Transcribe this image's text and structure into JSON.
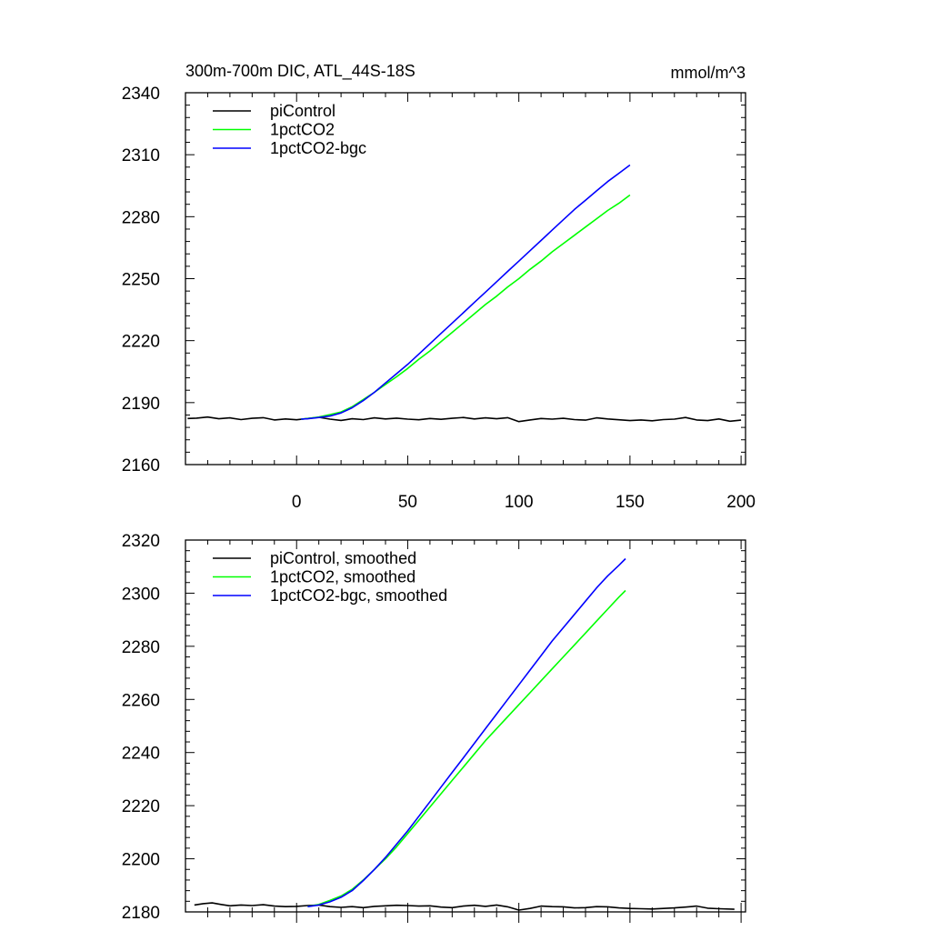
{
  "header": {
    "title": "300m-700m DIC, ATL_44S-18S",
    "units": "mmol/m^3"
  },
  "colors": {
    "piControl": "#000000",
    "1pctCO2": "#00ff00",
    "1pctCO2-bgc": "#0000ff"
  },
  "chart_data": [
    {
      "type": "line",
      "title": "300m-700m DIC, ATL_44S-18S",
      "units_label": "mmol/m^3",
      "xlabel": "",
      "ylabel": "",
      "xlim": [
        -50,
        202
      ],
      "ylim": [
        2160,
        2340
      ],
      "xticks": [
        0,
        50,
        100,
        150,
        200
      ],
      "yticks": [
        2160,
        2190,
        2220,
        2250,
        2280,
        2310,
        2340
      ],
      "grid": false,
      "legend_position": "top-left",
      "series": [
        {
          "name": "piControl",
          "color": "#000000",
          "x": [
            -49,
            -45,
            -40,
            -35,
            -30,
            -25,
            -20,
            -15,
            -10,
            -5,
            0,
            5,
            10,
            15,
            20,
            25,
            30,
            35,
            40,
            45,
            50,
            55,
            60,
            65,
            70,
            75,
            80,
            85,
            90,
            95,
            100,
            105,
            110,
            115,
            120,
            125,
            130,
            135,
            140,
            145,
            150,
            155,
            160,
            165,
            170,
            175,
            180,
            185,
            190,
            195,
            200
          ],
          "y": [
            2182.3,
            2182.5,
            2183.0,
            2182.2,
            2182.6,
            2181.8,
            2182.4,
            2182.7,
            2181.6,
            2182.1,
            2181.7,
            2182.3,
            2182.9,
            2182.0,
            2181.4,
            2182.2,
            2181.8,
            2182.6,
            2182.1,
            2182.5,
            2182.0,
            2181.7,
            2182.3,
            2181.9,
            2182.4,
            2182.8,
            2182.1,
            2182.6,
            2182.2,
            2182.7,
            2180.8,
            2181.6,
            2182.3,
            2182.0,
            2182.4,
            2181.8,
            2181.5,
            2182.6,
            2182.1,
            2181.7,
            2181.3,
            2181.6,
            2181.2,
            2181.8,
            2182.0,
            2182.8,
            2181.6,
            2181.3,
            2182.1,
            2181.0,
            2181.5
          ]
        },
        {
          "name": "1pctCO2",
          "color": "#00ff00",
          "x": [
            2,
            5,
            10,
            15,
            20,
            25,
            30,
            35,
            40,
            45,
            50,
            55,
            60,
            65,
            70,
            75,
            80,
            85,
            90,
            95,
            100,
            105,
            110,
            115,
            120,
            125,
            130,
            135,
            140,
            145,
            150
          ],
          "y": [
            2182.0,
            2182.3,
            2183.0,
            2184.2,
            2185.5,
            2188.0,
            2191.5,
            2195.0,
            2198.8,
            2202.5,
            2206.5,
            2211.0,
            2215.0,
            2219.5,
            2224.0,
            2228.5,
            2233.0,
            2237.5,
            2241.5,
            2246.0,
            2250.0,
            2254.5,
            2258.5,
            2263.0,
            2267.0,
            2271.0,
            2275.0,
            2279.0,
            2283.0,
            2286.5,
            2290.5
          ]
        },
        {
          "name": "1pctCO2-bgc",
          "color": "#0000ff",
          "x": [
            2,
            5,
            10,
            15,
            20,
            25,
            30,
            35,
            40,
            45,
            50,
            55,
            60,
            65,
            70,
            75,
            80,
            85,
            90,
            95,
            100,
            105,
            110,
            115,
            120,
            125,
            130,
            135,
            140,
            145,
            150
          ],
          "y": [
            2182.0,
            2182.2,
            2182.8,
            2183.5,
            2185.0,
            2187.5,
            2191.0,
            2195.0,
            2199.5,
            2204.0,
            2208.5,
            2213.5,
            2218.5,
            2223.5,
            2228.5,
            2233.5,
            2238.5,
            2243.5,
            2248.5,
            2253.5,
            2258.5,
            2263.5,
            2268.5,
            2273.5,
            2278.5,
            2283.5,
            2288.0,
            2292.5,
            2297.0,
            2301.0,
            2305.0
          ]
        }
      ]
    },
    {
      "type": "line",
      "title": "",
      "xlabel": "",
      "ylabel": "",
      "xlim": [
        -50,
        202
      ],
      "ylim": [
        2180,
        2320
      ],
      "xticks": [
        0,
        50,
        100,
        150,
        200
      ],
      "yticks": [
        2180,
        2200,
        2220,
        2240,
        2260,
        2280,
        2300,
        2320
      ],
      "grid": false,
      "legend_position": "top-left",
      "series": [
        {
          "name": "piControl, smoothed",
          "color": "#000000",
          "x": [
            -46,
            -42,
            -38,
            -34,
            -30,
            -25,
            -20,
            -15,
            -10,
            -5,
            0,
            5,
            10,
            15,
            20,
            25,
            30,
            35,
            40,
            45,
            50,
            55,
            60,
            65,
            70,
            75,
            80,
            85,
            90,
            95,
            100,
            105,
            110,
            115,
            120,
            125,
            130,
            135,
            140,
            145,
            150,
            155,
            160,
            165,
            170,
            175,
            180,
            185,
            190,
            197
          ],
          "y": [
            2182.6,
            2183.1,
            2183.4,
            2182.8,
            2182.3,
            2182.6,
            2182.4,
            2182.7,
            2182.2,
            2182.0,
            2182.1,
            2182.4,
            2182.6,
            2182.0,
            2181.7,
            2182.0,
            2181.6,
            2182.1,
            2182.3,
            2182.5,
            2182.4,
            2182.2,
            2182.3,
            2181.8,
            2181.6,
            2182.2,
            2182.5,
            2182.1,
            2182.6,
            2181.9,
            2180.7,
            2181.3,
            2182.2,
            2182.0,
            2181.9,
            2181.5,
            2181.6,
            2182.0,
            2181.9,
            2181.5,
            2181.3,
            2181.2,
            2181.1,
            2181.3,
            2181.5,
            2181.8,
            2182.2,
            2181.4,
            2181.2,
            2181.0
          ]
        },
        {
          "name": "1pctCO2, smoothed",
          "color": "#00ff00",
          "x": [
            5,
            10,
            15,
            20,
            25,
            30,
            35,
            40,
            45,
            50,
            55,
            60,
            65,
            70,
            75,
            80,
            85,
            90,
            95,
            100,
            105,
            110,
            115,
            120,
            125,
            130,
            135,
            140,
            145,
            148
          ],
          "y": [
            2182.0,
            2182.8,
            2184.3,
            2186.0,
            2188.5,
            2192.0,
            2196.0,
            2200.0,
            2204.5,
            2209.5,
            2214.5,
            2219.5,
            2224.5,
            2229.5,
            2234.5,
            2239.5,
            2244.5,
            2249.0,
            2253.5,
            2258.0,
            2262.5,
            2267.0,
            2271.5,
            2276.0,
            2280.5,
            2285.0,
            2289.5,
            2294.0,
            2298.5,
            2301.0
          ]
        },
        {
          "name": "1pctCO2-bgc, smoothed",
          "color": "#0000ff",
          "x": [
            5,
            10,
            15,
            20,
            25,
            30,
            35,
            40,
            45,
            50,
            55,
            60,
            65,
            70,
            75,
            80,
            85,
            90,
            95,
            100,
            105,
            110,
            115,
            120,
            125,
            130,
            135,
            140,
            145,
            148
          ],
          "y": [
            2182.0,
            2182.6,
            2183.8,
            2185.5,
            2188.0,
            2191.8,
            2196.0,
            2200.5,
            2205.5,
            2210.5,
            2216.0,
            2221.5,
            2227.0,
            2232.5,
            2238.0,
            2243.5,
            2249.0,
            2254.5,
            2260.0,
            2265.5,
            2271.0,
            2276.5,
            2282.0,
            2287.0,
            2292.0,
            2297.0,
            2302.0,
            2306.5,
            2310.5,
            2313.0
          ]
        }
      ]
    }
  ]
}
